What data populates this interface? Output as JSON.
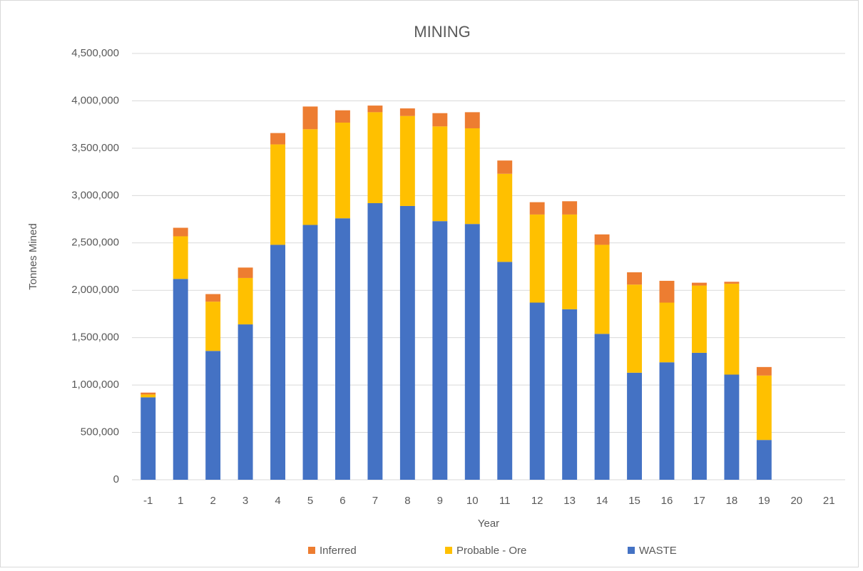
{
  "chart_data": {
    "type": "bar",
    "stacked": true,
    "title": "MINING",
    "x_label": "Year",
    "y_label": "Tonnes Mined",
    "categories": [
      "-1",
      "1",
      "2",
      "3",
      "4",
      "5",
      "6",
      "7",
      "8",
      "9",
      "10",
      "11",
      "12",
      "13",
      "14",
      "15",
      "16",
      "17",
      "18",
      "19",
      "20",
      "21"
    ],
    "series": [
      {
        "name": "WASTE",
        "color": "#4472c4",
        "values": [
          870000,
          2120000,
          1360000,
          1640000,
          2480000,
          2690000,
          2760000,
          2920000,
          2890000,
          2730000,
          2700000,
          2300000,
          1870000,
          1800000,
          1540000,
          1130000,
          1240000,
          1340000,
          1110000,
          420000,
          0,
          0
        ]
      },
      {
        "name": "Probable - Ore",
        "color": "#ffc000",
        "values": [
          30000,
          450000,
          520000,
          490000,
          1060000,
          1010000,
          1010000,
          960000,
          950000,
          1000000,
          1010000,
          930000,
          930000,
          1000000,
          940000,
          930000,
          630000,
          710000,
          960000,
          680000,
          0,
          0
        ]
      },
      {
        "name": "Inferred",
        "color": "#ed7d31",
        "values": [
          20000,
          90000,
          80000,
          110000,
          120000,
          240000,
          130000,
          70000,
          80000,
          140000,
          170000,
          140000,
          130000,
          140000,
          110000,
          130000,
          230000,
          30000,
          20000,
          90000,
          0,
          0
        ]
      }
    ],
    "ylim": [
      0,
      4500000
    ],
    "yticks": [
      0,
      {
        "value": 500000,
        "label": "500,000"
      },
      {
        "value": 1000000,
        "label": "1,000,000"
      },
      {
        "value": 1500000,
        "label": "1,500,000"
      },
      {
        "value": 2000000,
        "label": "2,000,000"
      },
      {
        "value": 2500000,
        "label": "2,500,000"
      },
      {
        "value": 3000000,
        "label": "3,000,000"
      },
      {
        "value": 3500000,
        "label": "3,500,000"
      },
      {
        "value": 4000000,
        "label": "4,000,000"
      },
      {
        "value": 4500000,
        "label": "4,500,000"
      }
    ],
    "grid": true,
    "legend": "bottom"
  }
}
